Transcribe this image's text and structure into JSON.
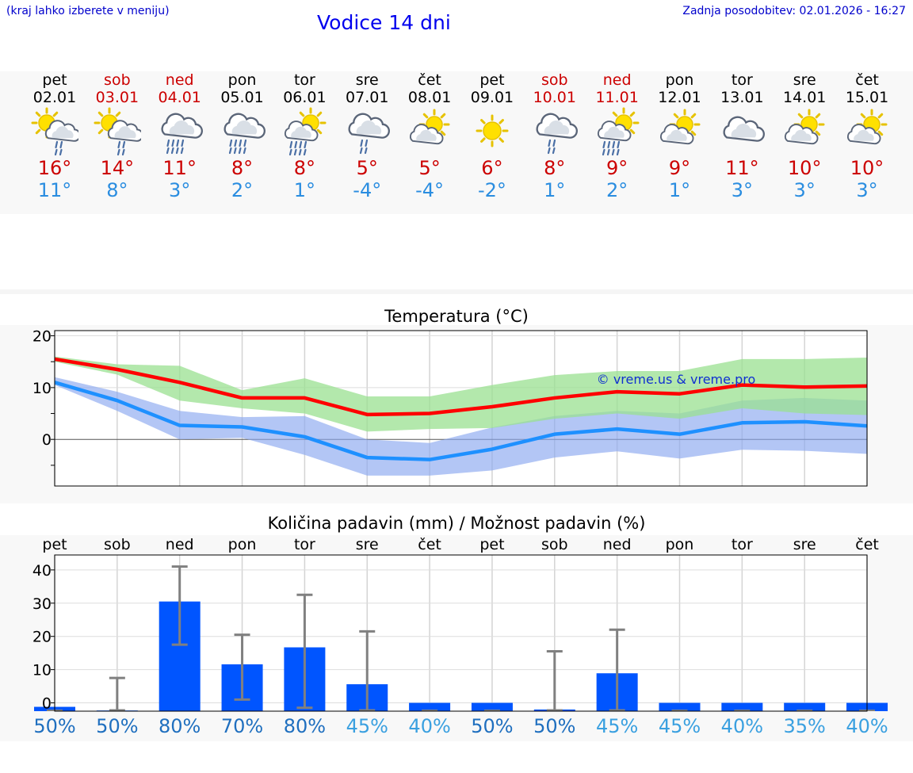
{
  "header": {
    "hint": "(kraj lahko izberete v meniju)",
    "title": "Vodice 14 dni",
    "updated": "Zadnja posodobitev: 02.01.2026 - 16:27"
  },
  "colors": {
    "header_blue": "#0000cc",
    "weekend_red": "#cc0000",
    "tmax_red": "#cc0000",
    "tmin_blue": "#2a8de0",
    "max_line": "#ff0000",
    "min_line": "#1e90ff",
    "max_band": "#99e090",
    "min_band": "#8aa8f0",
    "bar": "#0055ff",
    "errbar": "#808080",
    "prob_dark": "#1f6fbf",
    "prob_light": "#3aa0e0"
  },
  "days": [
    {
      "name": "pet",
      "date": "02.01",
      "weekend": false,
      "icon": "sun-cloud-rain-icon",
      "tmax": "16°",
      "tmin": "11°"
    },
    {
      "name": "sob",
      "date": "03.01",
      "weekend": true,
      "icon": "sun-cloud-rain-icon",
      "tmax": "14°",
      "tmin": "8°"
    },
    {
      "name": "ned",
      "date": "04.01",
      "weekend": true,
      "icon": "cloud-heavy-rain-icon",
      "tmax": "11°",
      "tmin": "3°"
    },
    {
      "name": "pon",
      "date": "05.01",
      "weekend": false,
      "icon": "cloud-heavy-rain-icon",
      "tmax": "8°",
      "tmin": "2°"
    },
    {
      "name": "tor",
      "date": "06.01",
      "weekend": false,
      "icon": "sun-rain-icon",
      "tmax": "8°",
      "tmin": "1°"
    },
    {
      "name": "sre",
      "date": "07.01",
      "weekend": false,
      "icon": "cloud-rain-icon",
      "tmax": "5°",
      "tmin": "-4°"
    },
    {
      "name": "čet",
      "date": "08.01",
      "weekend": false,
      "icon": "sun-cloud-icon",
      "tmax": "5°",
      "tmin": "-4°"
    },
    {
      "name": "pet",
      "date": "09.01",
      "weekend": false,
      "icon": "sun-icon",
      "tmax": "6°",
      "tmin": "-2°"
    },
    {
      "name": "sob",
      "date": "10.01",
      "weekend": true,
      "icon": "cloud-rain-icon",
      "tmax": "8°",
      "tmin": "1°"
    },
    {
      "name": "ned",
      "date": "11.01",
      "weekend": true,
      "icon": "sun-rain-icon",
      "tmax": "9°",
      "tmin": "2°"
    },
    {
      "name": "pon",
      "date": "12.01",
      "weekend": false,
      "icon": "sun-cloud-icon",
      "tmax": "9°",
      "tmin": "1°"
    },
    {
      "name": "tor",
      "date": "13.01",
      "weekend": false,
      "icon": "cloud-icon",
      "tmax": "11°",
      "tmin": "3°"
    },
    {
      "name": "sre",
      "date": "14.01",
      "weekend": false,
      "icon": "sun-cloud-icon",
      "tmax": "10°",
      "tmin": "3°"
    },
    {
      "name": "čet",
      "date": "15.01",
      "weekend": false,
      "icon": "sun-cloud-icon",
      "tmax": "10°",
      "tmin": "3°"
    }
  ],
  "chart_data": [
    {
      "type": "line",
      "title": "Temperatura (°C)",
      "watermark": "© vreme.us & vreme.pro",
      "ylim": [
        -9,
        21
      ],
      "yticks": [
        0,
        10,
        20
      ],
      "grid": true,
      "x": [
        "pet",
        "sob",
        "ned",
        "pon",
        "tor",
        "sre",
        "čet",
        "pet",
        "sob",
        "ned",
        "pon",
        "tor",
        "sre",
        "čet"
      ],
      "series": [
        {
          "name": "max",
          "values": [
            15.5,
            13.5,
            11,
            8,
            8,
            4.8,
            5,
            6.3,
            8,
            9.2,
            8.8,
            10.5,
            10.1,
            10.3
          ]
        },
        {
          "name": "min",
          "values": [
            11,
            7.5,
            2.7,
            2.4,
            0.5,
            -3.5,
            -3.9,
            -1.9,
            1,
            2,
            1,
            3.2,
            3.4,
            2.6
          ]
        }
      ],
      "bands": [
        {
          "name": "max_range",
          "upper": [
            16,
            14.5,
            14.2,
            9.5,
            11.8,
            8.3,
            8.3,
            10.5,
            12.4,
            13.2,
            13.2,
            15.5,
            15.5,
            15.8
          ],
          "lower": [
            15,
            12.5,
            7.5,
            6,
            5,
            1.5,
            2,
            2.2,
            4,
            5,
            4,
            6,
            5,
            4.7
          ]
        },
        {
          "name": "min_range",
          "upper": [
            12,
            9.2,
            5.5,
            4.3,
            4.5,
            0,
            -0.7,
            2.3,
            4.5,
            5.5,
            5,
            7.5,
            8,
            7.5
          ]
        },
        {
          "name": "min_range_lower",
          "lower": [
            10.5,
            5.5,
            0,
            0.3,
            -3,
            -7,
            -7,
            -6,
            -3.5,
            -2.3,
            -3.7,
            -2,
            -2.2,
            -2.8
          ]
        }
      ]
    },
    {
      "type": "bar",
      "title": "Količina padavin (mm) / Možnost padavin (%)",
      "ylim": [
        -2.5,
        44.5
      ],
      "yticks": [
        0,
        10,
        20,
        30,
        40
      ],
      "grid": true,
      "categories": [
        "pet",
        "sob",
        "ned",
        "pon",
        "tor",
        "sre",
        "čet",
        "pet",
        "sob",
        "ned",
        "pon",
        "tor",
        "sre",
        "čet"
      ],
      "values": [
        -1.2,
        -2.3,
        30.5,
        11.6,
        16.7,
        5.6,
        0,
        0,
        -2,
        8.9,
        0,
        0,
        0,
        0
      ],
      "error_low": [
        null,
        null,
        17.5,
        1,
        -1.5,
        null,
        null,
        null,
        null,
        null,
        null,
        null,
        null,
        null
      ],
      "error_high": [
        null,
        7.5,
        41,
        20.5,
        32.5,
        21.5,
        null,
        null,
        15.5,
        22,
        null,
        null,
        null,
        null
      ],
      "probability": [
        "50%",
        "50%",
        "80%",
        "70%",
        "80%",
        "45%",
        "40%",
        "50%",
        "50%",
        "45%",
        "45%",
        "40%",
        "35%",
        "40%"
      ],
      "probability_shade": [
        "dark",
        "dark",
        "dark",
        "dark",
        "dark",
        "light",
        "light",
        "dark",
        "dark",
        "light",
        "light",
        "light",
        "light",
        "light"
      ]
    }
  ]
}
